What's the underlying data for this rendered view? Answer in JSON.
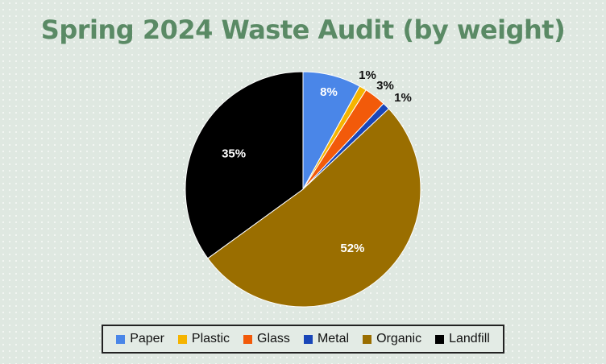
{
  "colors": {
    "title": "#5a8a65",
    "slice_border": "#ffffff"
  },
  "chart_data": {
    "type": "pie",
    "title": "Spring 2024 Waste Audit (by weight)",
    "start_angle_deg": 0,
    "direction": "clockwise",
    "legend_position": "bottom",
    "slices": [
      {
        "label": "Paper",
        "value": 8,
        "display": "8%",
        "color": "#4a86e8",
        "label_color": "#ffffff"
      },
      {
        "label": "Plastic",
        "value": 1,
        "display": "1%",
        "color": "#f5b400",
        "label_color": "#111111"
      },
      {
        "label": "Glass",
        "value": 3,
        "display": "3%",
        "color": "#f25a0a",
        "label_color": "#111111"
      },
      {
        "label": "Metal",
        "value": 1,
        "display": "1%",
        "color": "#1946b8",
        "label_color": "#111111"
      },
      {
        "label": "Organic",
        "value": 52,
        "display": "52%",
        "color": "#9a6e00",
        "label_color": "#ffffff"
      },
      {
        "label": "Landfill",
        "value": 35,
        "display": "35%",
        "color": "#000000",
        "label_color": "#ffffff"
      }
    ]
  }
}
